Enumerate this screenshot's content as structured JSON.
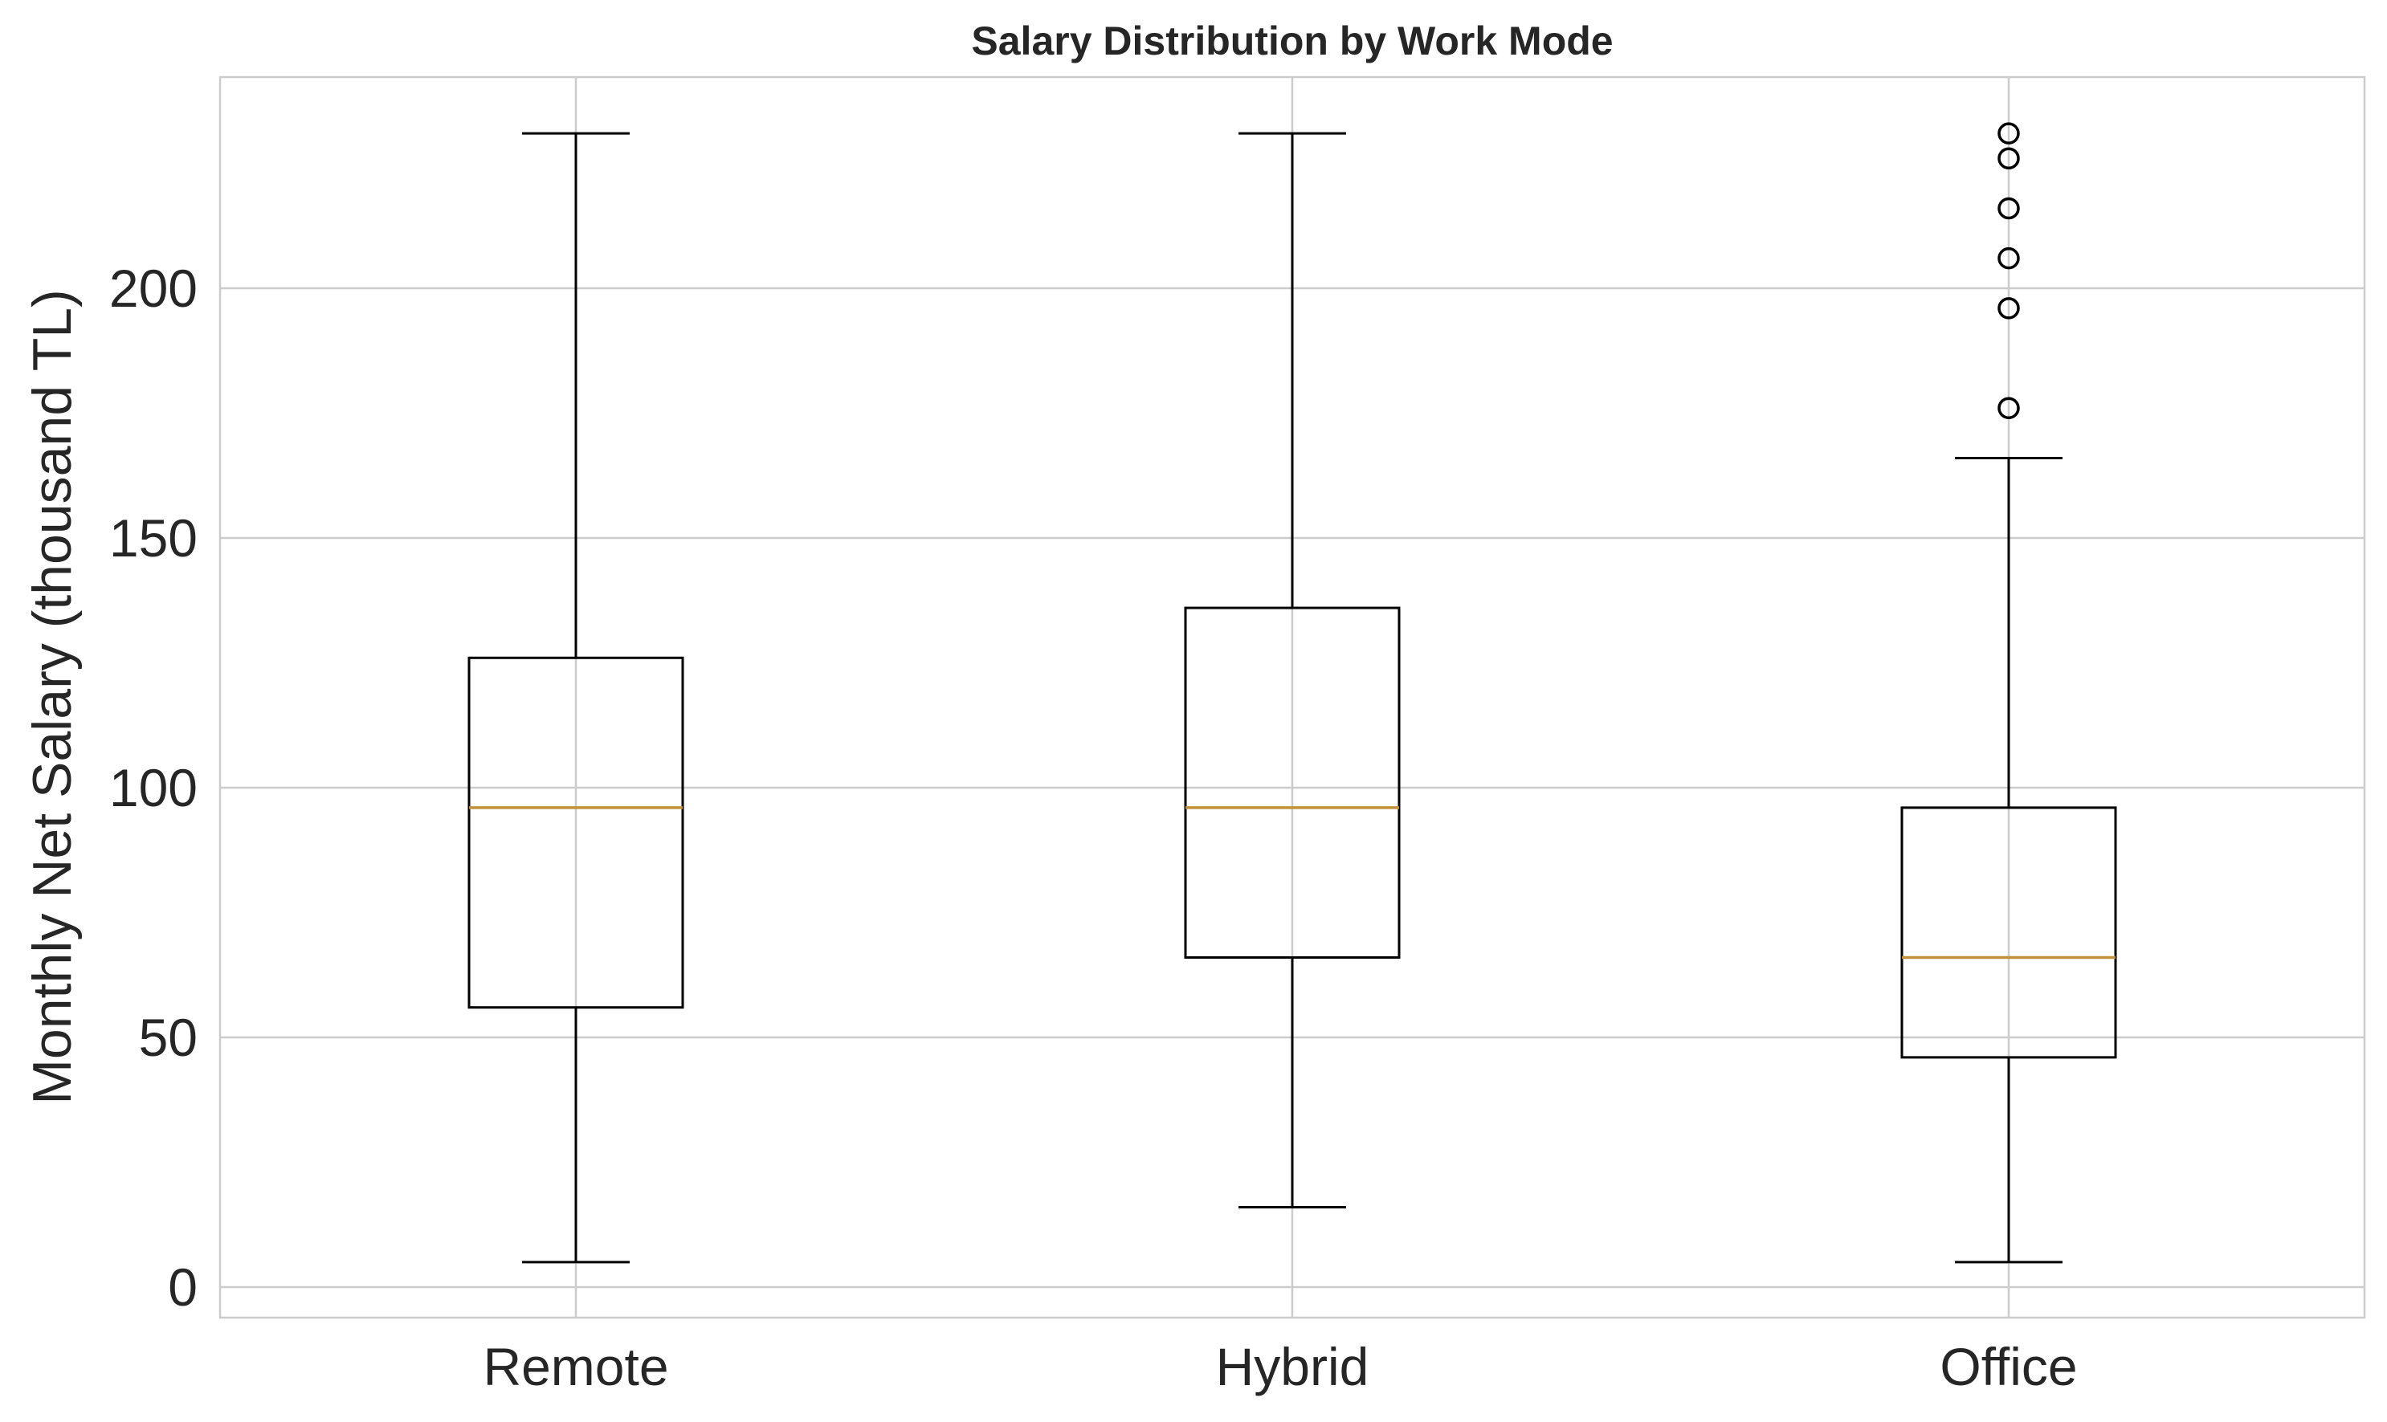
{
  "chart_data": {
    "type": "box",
    "title": "Salary Distribution by Work Mode",
    "xlabel": "",
    "ylabel": "Monthly Net Salary (thousand TL)",
    "ylim": [
      -6,
      242
    ],
    "yticks": [
      0,
      50,
      100,
      150,
      200
    ],
    "grid": true,
    "categories": [
      "Remote",
      "Hybrid",
      "Office"
    ],
    "boxes": [
      {
        "category": "Remote",
        "whisker_low": 5,
        "q1": 56,
        "median": 96,
        "q3": 126,
        "whisker_high": 231,
        "outliers": []
      },
      {
        "category": "Hybrid",
        "whisker_low": 16,
        "q1": 66,
        "median": 96,
        "q3": 136,
        "whisker_high": 231,
        "outliers": []
      },
      {
        "category": "Office",
        "whisker_low": 5,
        "q1": 46,
        "median": 66,
        "q3": 96,
        "whisker_high": 166,
        "outliers": [
          176,
          196,
          206,
          216,
          226,
          231
        ]
      }
    ],
    "colors": {
      "box": "#000000",
      "median": "#c0913a",
      "grid": "#cccccc"
    }
  }
}
